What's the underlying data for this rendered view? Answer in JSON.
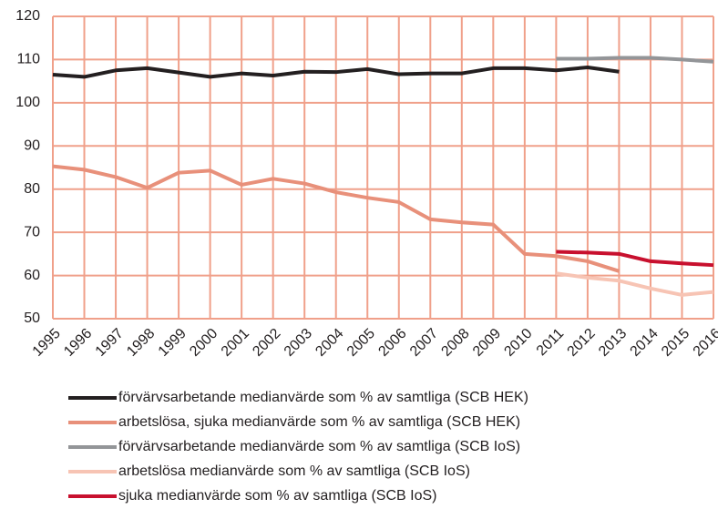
{
  "chart_data": {
    "type": "line",
    "categories": [
      "1995",
      "1996",
      "1997",
      "1998",
      "1999",
      "2000",
      "2001",
      "2002",
      "2003",
      "2004",
      "2005",
      "2006",
      "2007",
      "2008",
      "2009",
      "2010",
      "2011",
      "2012",
      "2013",
      "2014",
      "2015",
      "2016"
    ],
    "series": [
      {
        "name": "förvärvsarbetande medianvärde som % av samtliga (SCB HEK)",
        "color": "#231f20",
        "values": [
          106.5,
          106,
          107.5,
          108,
          107,
          106,
          106.8,
          106.3,
          107.2,
          107.1,
          107.8,
          106.6,
          106.8,
          106.8,
          108,
          108,
          107.5,
          108.2,
          107.2,
          null,
          null,
          null
        ]
      },
      {
        "name": "arbetslösa, sjuka medianvärde som % av samtliga (SCB HEK)",
        "color": "#e8907a",
        "values": [
          85.3,
          84.5,
          82.8,
          80.3,
          83.8,
          84.3,
          81,
          82.4,
          81.3,
          79.3,
          78,
          77,
          73,
          72.3,
          71.8,
          65,
          64.5,
          63.3,
          61,
          null,
          null,
          null
        ]
      },
      {
        "name": "förvärvsarbetande medianvärde som % av samtliga (SCB IoS)",
        "color": "#939598",
        "values": [
          null,
          null,
          null,
          null,
          null,
          null,
          null,
          null,
          null,
          null,
          null,
          null,
          null,
          null,
          null,
          null,
          110.2,
          110.2,
          110.4,
          110.4,
          110,
          109.5
        ]
      },
      {
        "name": "arbetslösa medianvärde som % av samtliga (SCB IoS)",
        "color": "#f7c4b4",
        "values": [
          null,
          null,
          null,
          null,
          null,
          null,
          null,
          null,
          null,
          null,
          null,
          null,
          null,
          null,
          null,
          null,
          60.5,
          59.5,
          58.8,
          57,
          55.5,
          56.2
        ]
      },
      {
        "name": "sjuka medianvärde som % av samtliga (SCB IoS)",
        "color": "#c8102e",
        "values": [
          null,
          null,
          null,
          null,
          null,
          null,
          null,
          null,
          null,
          null,
          null,
          null,
          null,
          null,
          null,
          null,
          65.5,
          65.3,
          65,
          63.3,
          62.8,
          62.4
        ]
      }
    ],
    "ylim": [
      50,
      120
    ],
    "yticks": [
      50,
      60,
      70,
      80,
      90,
      100,
      110,
      120
    ],
    "grid": true,
    "grid_color": "#f0a08a"
  }
}
